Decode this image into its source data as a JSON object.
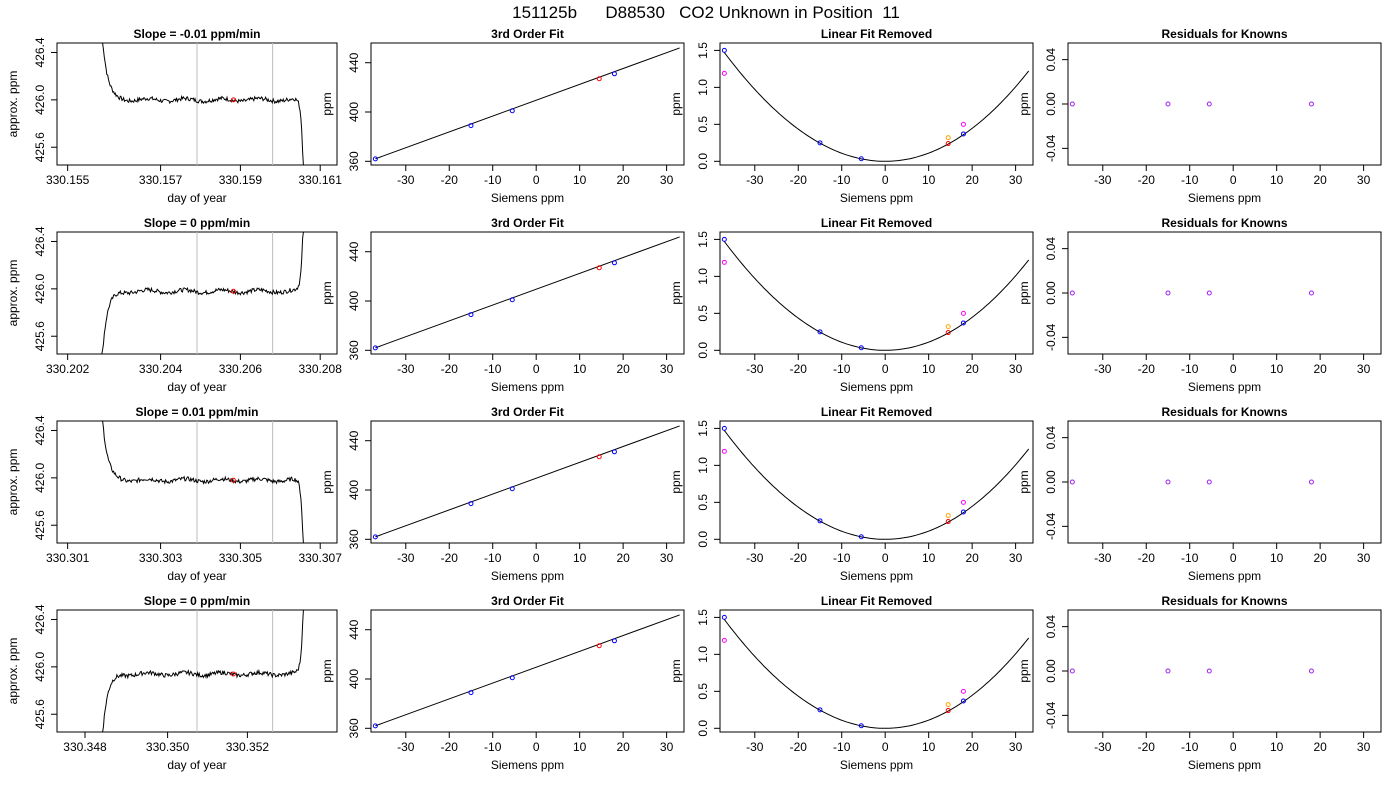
{
  "main_title": "151125b      D88530   CO2 Unknown in Position  11",
  "colors": {
    "trace": "#000000",
    "guide": "#bebebe",
    "unknown_point": "#ff0000",
    "known_point": "#0000ff",
    "alt_point_1": "#ff00ff",
    "alt_point_2": "#ffa500",
    "residual_point": "#a020f0"
  },
  "labels": {
    "fit_title": "3rd Order Fit",
    "linfit_title": "Linear Fit Removed",
    "resid_title": "Residuals for Knowns",
    "trace_ylabel": "approx. ppm",
    "trace_xlabel": "day of year",
    "ppm_ylabel": "ppm",
    "siemens_xlabel": "Siemens ppm"
  },
  "rows": [
    {
      "slope_title": "Slope =  -0.01  ppm/min",
      "trace_xticks": [
        "330.155",
        "330.157",
        "330.159",
        "330.161"
      ],
      "trace_shape": "falling-in",
      "trace_level": 426.0,
      "highlight_day_frac": 0.63
    },
    {
      "slope_title": "Slope =  0  ppm/min",
      "trace_xticks": [
        "330.202",
        "330.204",
        "330.206",
        "330.208"
      ],
      "trace_shape": "rising-in",
      "trace_level": 425.98,
      "highlight_day_frac": 0.63
    },
    {
      "slope_title": "Slope =  0.01  ppm/min",
      "trace_xticks": [
        "330.301",
        "330.303",
        "330.305",
        "330.307"
      ],
      "trace_shape": "falling-in",
      "trace_level": 425.98,
      "highlight_day_frac": 0.63
    },
    {
      "slope_title": "Slope =  0  ppm/min",
      "trace_xticks": [
        "330.348",
        "330.350",
        "330.352"
      ],
      "trace_shape": "rising-in",
      "trace_level": 425.94,
      "highlight_day_frac": 0.63
    }
  ],
  "chart_data": [
    {
      "type": "line",
      "panel": "trace",
      "xlabel": "day of year",
      "ylabel": "approx. ppm",
      "y_ticks": [
        425.6,
        426.0,
        426.4
      ],
      "ylim": [
        425.45,
        426.48
      ],
      "note": "each row shows a noisy flat trace near 426 ppm with a steep transition at both ends"
    },
    {
      "type": "scatter",
      "panel": "3rd Order Fit",
      "xlabel": "Siemens ppm",
      "ylabel": "ppm",
      "x_ticks": [
        -30,
        -20,
        -10,
        0,
        10,
        20,
        30
      ],
      "y_ticks": [
        360,
        400,
        440
      ],
      "xlim": [
        -38,
        34
      ],
      "ylim": [
        357,
        456
      ],
      "fit_line": {
        "x": [
          -37,
          33
        ],
        "y": [
          362,
          452
        ]
      },
      "series": [
        {
          "color": "known",
          "x": [
            -37,
            -15,
            -5.5,
            18
          ],
          "y": [
            362,
            389,
            401,
            431
          ]
        },
        {
          "color": "unknown",
          "x": [
            14.5
          ],
          "y": [
            427
          ]
        }
      ]
    },
    {
      "type": "scatter",
      "panel": "Linear Fit Removed",
      "xlabel": "Siemens ppm",
      "ylabel": "ppm",
      "x_ticks": [
        -30,
        -20,
        -10,
        0,
        10,
        20,
        30
      ],
      "y_ticks": [
        0.0,
        0.5,
        1.0,
        1.5
      ],
      "xlim": [
        -38,
        34
      ],
      "ylim": [
        -0.05,
        1.6
      ],
      "curve_coeff": 0.0011,
      "series": [
        {
          "color": "known",
          "x": [
            -37,
            -15,
            -5.5,
            18
          ],
          "y": [
            1.5,
            0.25,
            0.035,
            0.37
          ]
        },
        {
          "color": "unknown",
          "x": [
            14.5
          ],
          "y": [
            0.24
          ]
        },
        {
          "color": "alt_1",
          "x": [
            -37,
            18
          ],
          "y": [
            1.19,
            0.5
          ]
        },
        {
          "color": "alt_2",
          "x": [
            14.5
          ],
          "y": [
            0.32
          ]
        }
      ]
    },
    {
      "type": "scatter",
      "panel": "Residuals for Knowns",
      "xlabel": "Siemens ppm",
      "ylabel": "ppm",
      "x_ticks": [
        -30,
        -20,
        -10,
        0,
        10,
        20,
        30
      ],
      "y_ticks": [
        -0.04,
        0.0,
        0.04
      ],
      "xlim": [
        -38,
        34
      ],
      "ylim": [
        -0.055,
        0.055
      ],
      "series": [
        {
          "color": "residual",
          "x": [
            -37,
            -15,
            -5.5,
            18
          ],
          "y": [
            0,
            0,
            0,
            0
          ]
        }
      ]
    }
  ]
}
